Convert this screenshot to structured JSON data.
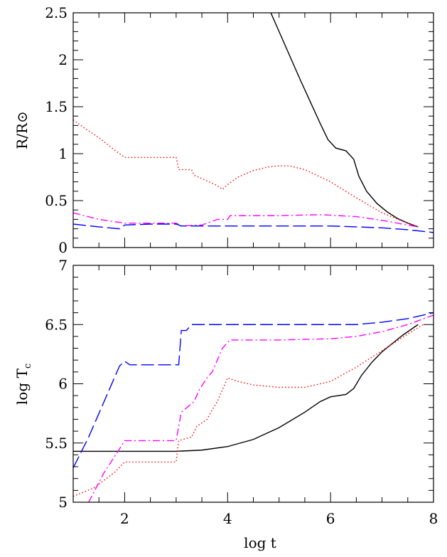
{
  "chart_data": [
    {
      "type": "line",
      "panel": "top",
      "ylabel": "R/R⊙",
      "xlim": [
        1,
        8
      ],
      "ylim": [
        0,
        2.5
      ],
      "x_ticks": [
        "2",
        "4",
        "6",
        "8"
      ],
      "y_ticks": [
        "0",
        "0.5",
        "1",
        "1.5",
        "2",
        "2.5"
      ],
      "series": [
        {
          "color": "#000000",
          "style": "solid",
          "x": [
            4.84,
            5.0,
            5.2,
            5.4,
            5.6,
            5.8,
            5.95,
            6.1,
            6.3,
            6.45,
            6.55,
            6.7,
            6.9,
            7.1,
            7.3,
            7.5,
            7.7
          ],
          "y": [
            2.5,
            2.3,
            2.05,
            1.8,
            1.56,
            1.32,
            1.15,
            1.06,
            1.03,
            0.94,
            0.76,
            0.6,
            0.47,
            0.38,
            0.31,
            0.26,
            0.22
          ]
        },
        {
          "color": "#ff0000",
          "style": "dotted",
          "x": [
            1.0,
            1.2,
            1.5,
            1.8,
            2.0,
            2.5,
            3.0,
            3.05,
            3.3,
            3.35,
            3.6,
            3.8,
            3.9,
            4.0,
            4.2,
            4.5,
            4.8,
            5.0,
            5.2,
            5.5,
            6.0,
            6.5,
            7.0,
            7.5,
            7.7
          ],
          "y": [
            1.36,
            1.28,
            1.17,
            1.04,
            0.96,
            0.96,
            0.96,
            0.83,
            0.83,
            0.77,
            0.71,
            0.66,
            0.62,
            0.67,
            0.75,
            0.82,
            0.86,
            0.87,
            0.87,
            0.83,
            0.7,
            0.53,
            0.37,
            0.26,
            0.22
          ]
        },
        {
          "color": "#ff00ff",
          "style": "dashdot",
          "x": [
            1.0,
            1.5,
            2.0,
            3.0,
            3.1,
            3.5,
            3.8,
            4.0,
            4.05,
            5.0,
            5.8,
            6.5,
            7.0,
            7.5,
            7.7
          ],
          "y": [
            0.37,
            0.3,
            0.26,
            0.26,
            0.23,
            0.24,
            0.3,
            0.3,
            0.34,
            0.34,
            0.35,
            0.33,
            0.29,
            0.24,
            0.22
          ]
        },
        {
          "color": "#0000ff",
          "style": "dashed",
          "x": [
            1.0,
            1.5,
            1.9,
            2.0,
            2.5,
            3.0,
            3.1,
            4.0,
            5.0,
            6.0,
            6.5,
            7.0,
            7.5,
            8.0
          ],
          "y": [
            0.25,
            0.22,
            0.2,
            0.24,
            0.25,
            0.25,
            0.23,
            0.23,
            0.23,
            0.23,
            0.22,
            0.21,
            0.19,
            0.16
          ]
        }
      ]
    },
    {
      "type": "line",
      "panel": "bottom",
      "xlabel": "log  t",
      "ylabel": "log  Tc",
      "ylabel_main": "log  T",
      "ylabel_sub": "c",
      "xlim": [
        1,
        8
      ],
      "ylim": [
        5,
        7
      ],
      "x_ticks": [
        "2",
        "4",
        "6",
        "8"
      ],
      "y_ticks": [
        "5",
        "5.5",
        "6",
        "6.5",
        "7"
      ],
      "series": [
        {
          "color": "#000000",
          "style": "solid",
          "x": [
            1.0,
            2.0,
            3.0,
            3.5,
            4.0,
            4.5,
            5.0,
            5.5,
            5.8,
            6.0,
            6.3,
            6.45,
            6.6,
            6.8,
            7.0,
            7.2,
            7.4,
            7.6,
            7.7
          ],
          "y": [
            5.43,
            5.43,
            5.43,
            5.44,
            5.47,
            5.53,
            5.63,
            5.76,
            5.85,
            5.89,
            5.91,
            5.96,
            6.07,
            6.18,
            6.27,
            6.34,
            6.41,
            6.47,
            6.5
          ]
        },
        {
          "color": "#ff0000",
          "style": "dotted",
          "x": [
            1.0,
            1.4,
            1.8,
            2.0,
            2.5,
            3.0,
            3.05,
            3.3,
            3.4,
            3.6,
            3.7,
            3.8,
            3.9,
            4.0,
            4.2,
            4.5,
            5.0,
            5.5,
            6.0,
            6.5,
            7.0,
            7.5,
            7.8
          ],
          "y": [
            5.05,
            5.12,
            5.25,
            5.34,
            5.34,
            5.34,
            5.52,
            5.55,
            5.64,
            5.7,
            5.78,
            5.85,
            5.95,
            6.05,
            6.02,
            5.99,
            5.97,
            5.97,
            6.02,
            6.14,
            6.28,
            6.42,
            6.5
          ]
        },
        {
          "color": "#ff00ff",
          "style": "dashdot",
          "x": [
            1.3,
            1.6,
            1.9,
            2.0,
            2.5,
            3.0,
            3.1,
            3.35,
            3.45,
            3.6,
            3.7,
            3.8,
            3.9,
            4.0,
            4.05,
            5.0,
            6.0,
            6.5,
            7.0,
            7.5,
            8.0
          ],
          "y": [
            5.0,
            5.25,
            5.45,
            5.52,
            5.52,
            5.52,
            5.76,
            5.85,
            5.95,
            6.05,
            6.1,
            6.2,
            6.3,
            6.35,
            6.37,
            6.37,
            6.38,
            6.4,
            6.44,
            6.5,
            6.58
          ]
        },
        {
          "color": "#0000ff",
          "style": "dashed",
          "x": [
            1.0,
            1.3,
            1.6,
            1.9,
            2.0,
            2.1,
            3.0,
            3.05,
            3.1,
            3.2,
            3.3,
            4.0,
            5.0,
            6.0,
            6.5,
            7.0,
            7.5,
            8.0
          ],
          "y": [
            5.29,
            5.55,
            5.85,
            6.15,
            6.19,
            6.16,
            6.16,
            6.16,
            6.45,
            6.45,
            6.5,
            6.5,
            6.5,
            6.5,
            6.5,
            6.52,
            6.55,
            6.6
          ]
        }
      ]
    }
  ]
}
